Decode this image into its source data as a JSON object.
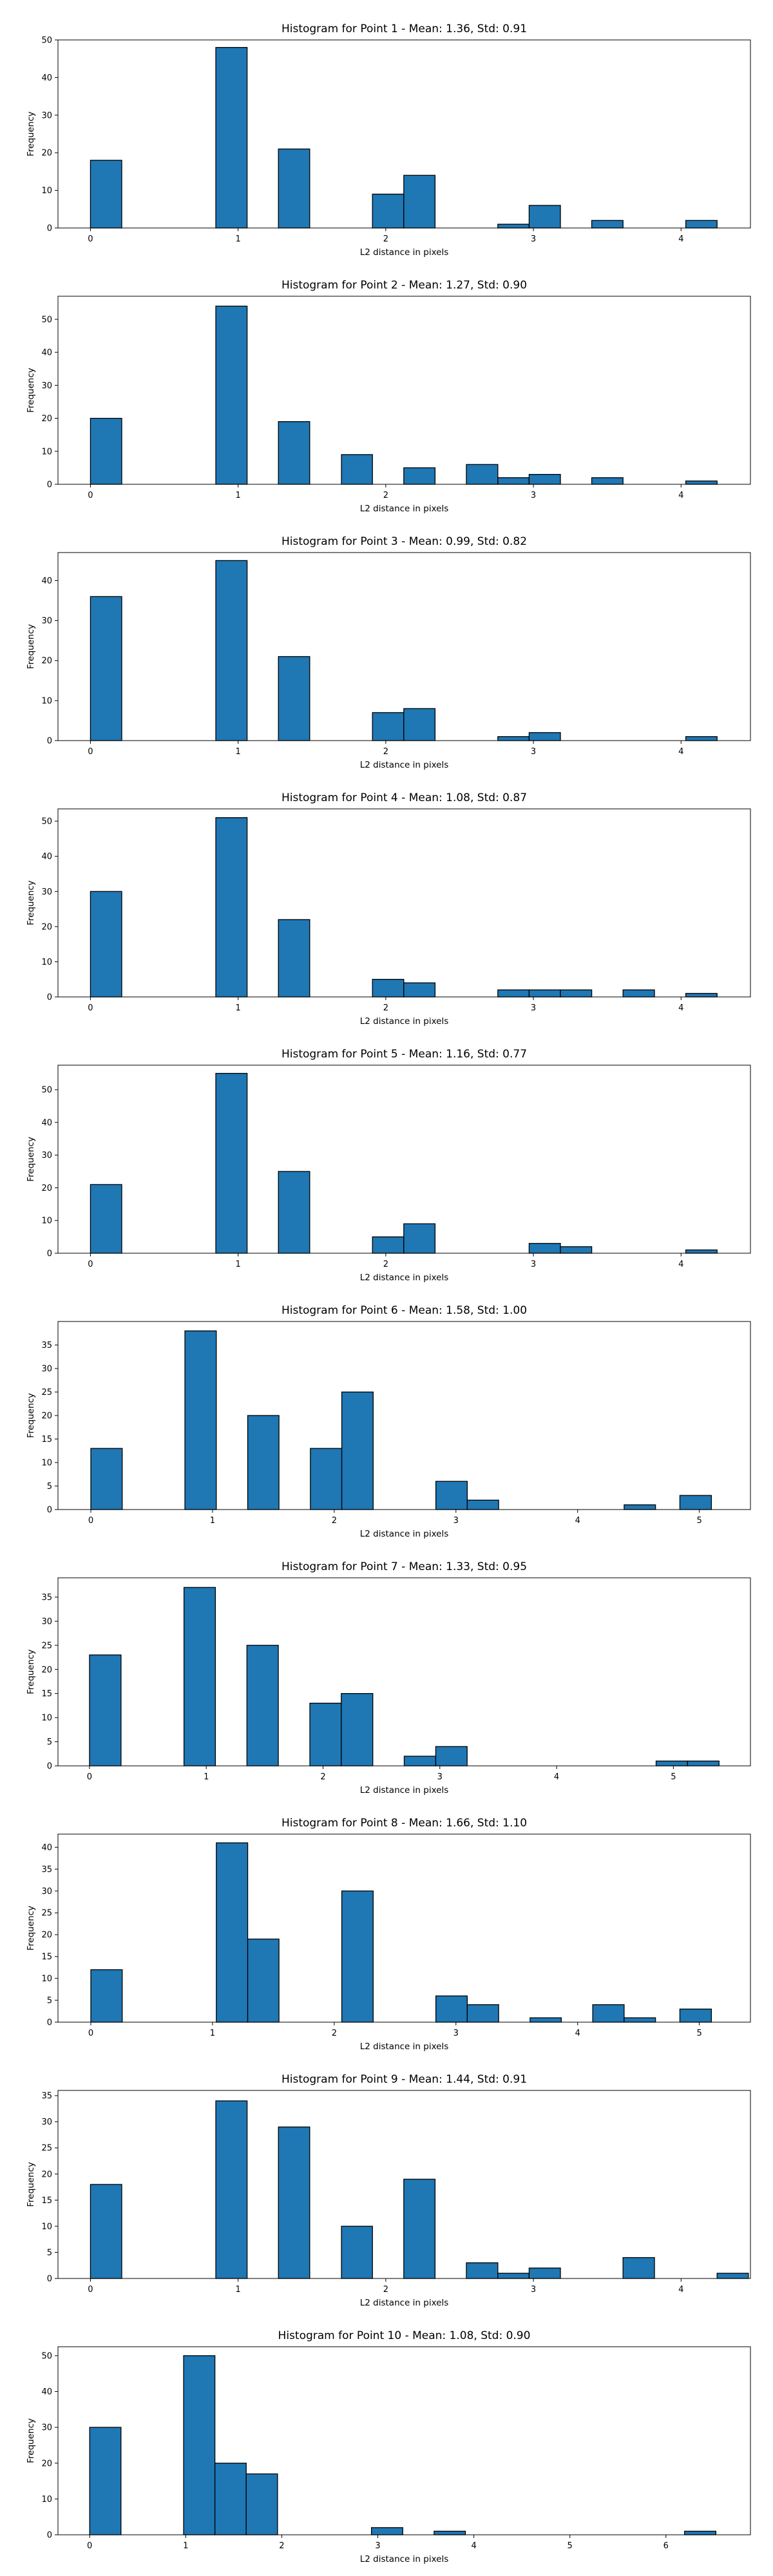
{
  "figure": {
    "bar_color": "#1f77b4",
    "edge_color": "#000000"
  },
  "chart_data": [
    {
      "type": "bar",
      "title": "Histogram for Point 1 - Mean: 1.36, Std: 0.91",
      "xlabel": "L2 distance in pixels",
      "ylabel": "Frequency",
      "xlim": [
        -0.22,
        4.47
      ],
      "ylim": [
        0,
        50
      ],
      "xticks": [
        0,
        1,
        2,
        3,
        4
      ],
      "yticks": [
        0,
        10,
        20,
        30,
        40,
        50
      ],
      "bars": [
        {
          "x0": 0.0,
          "x1": 0.212,
          "value": 18
        },
        {
          "x0": 0.849,
          "x1": 1.061,
          "value": 48
        },
        {
          "x0": 1.273,
          "x1": 1.485,
          "value": 21
        },
        {
          "x0": 1.91,
          "x1": 2.122,
          "value": 9
        },
        {
          "x0": 2.122,
          "x1": 2.334,
          "value": 14
        },
        {
          "x0": 2.759,
          "x1": 2.971,
          "value": 1
        },
        {
          "x0": 2.971,
          "x1": 3.183,
          "value": 6
        },
        {
          "x0": 3.395,
          "x1": 3.607,
          "value": 2
        },
        {
          "x0": 4.032,
          "x1": 4.244,
          "value": 2
        }
      ]
    },
    {
      "type": "bar",
      "title": "Histogram for Point 2 - Mean: 1.27, Std: 0.90",
      "xlabel": "L2 distance in pixels",
      "ylabel": "Frequency",
      "xlim": [
        -0.22,
        4.47
      ],
      "ylim": [
        0,
        57
      ],
      "xticks": [
        0,
        1,
        2,
        3,
        4
      ],
      "yticks": [
        0,
        10,
        20,
        30,
        40,
        50
      ],
      "bars": [
        {
          "x0": 0.0,
          "x1": 0.212,
          "value": 20
        },
        {
          "x0": 0.849,
          "x1": 1.061,
          "value": 54
        },
        {
          "x0": 1.273,
          "x1": 1.485,
          "value": 19
        },
        {
          "x0": 1.7,
          "x1": 1.91,
          "value": 9
        },
        {
          "x0": 2.122,
          "x1": 2.334,
          "value": 5
        },
        {
          "x0": 2.546,
          "x1": 2.759,
          "value": 6
        },
        {
          "x0": 2.759,
          "x1": 2.971,
          "value": 2
        },
        {
          "x0": 2.971,
          "x1": 3.183,
          "value": 3
        },
        {
          "x0": 3.395,
          "x1": 3.607,
          "value": 2
        },
        {
          "x0": 4.032,
          "x1": 4.244,
          "value": 1
        }
      ]
    },
    {
      "type": "bar",
      "title": "Histogram for Point 3 - Mean: 0.99, Std: 0.82",
      "xlabel": "L2 distance in pixels",
      "ylabel": "Frequency",
      "xlim": [
        -0.22,
        4.47
      ],
      "ylim": [
        0,
        47
      ],
      "xticks": [
        0,
        1,
        2,
        3,
        4
      ],
      "yticks": [
        0,
        10,
        20,
        30,
        40
      ],
      "bars": [
        {
          "x0": 0.0,
          "x1": 0.212,
          "value": 36
        },
        {
          "x0": 0.849,
          "x1": 1.061,
          "value": 45
        },
        {
          "x0": 1.273,
          "x1": 1.485,
          "value": 21
        },
        {
          "x0": 1.91,
          "x1": 2.122,
          "value": 7
        },
        {
          "x0": 2.122,
          "x1": 2.334,
          "value": 8
        },
        {
          "x0": 2.759,
          "x1": 2.971,
          "value": 1
        },
        {
          "x0": 2.971,
          "x1": 3.183,
          "value": 2
        },
        {
          "x0": 4.032,
          "x1": 4.244,
          "value": 1
        }
      ]
    },
    {
      "type": "bar",
      "title": "Histogram for Point 4 - Mean: 1.08, Std: 0.87",
      "xlabel": "L2 distance in pixels",
      "ylabel": "Frequency",
      "xlim": [
        -0.22,
        4.47
      ],
      "ylim": [
        0,
        53.5
      ],
      "xticks": [
        0,
        1,
        2,
        3,
        4
      ],
      "yticks": [
        0,
        10,
        20,
        30,
        40,
        50
      ],
      "bars": [
        {
          "x0": 0.0,
          "x1": 0.212,
          "value": 30
        },
        {
          "x0": 0.849,
          "x1": 1.061,
          "value": 51
        },
        {
          "x0": 1.273,
          "x1": 1.485,
          "value": 22
        },
        {
          "x0": 1.91,
          "x1": 2.122,
          "value": 5
        },
        {
          "x0": 2.122,
          "x1": 2.334,
          "value": 4
        },
        {
          "x0": 2.759,
          "x1": 2.971,
          "value": 2
        },
        {
          "x0": 2.971,
          "x1": 3.183,
          "value": 2
        },
        {
          "x0": 3.183,
          "x1": 3.395,
          "value": 2
        },
        {
          "x0": 3.607,
          "x1": 3.82,
          "value": 2
        },
        {
          "x0": 4.032,
          "x1": 4.244,
          "value": 1
        }
      ]
    },
    {
      "type": "bar",
      "title": "Histogram for Point 5 - Mean: 1.16, Std: 0.77",
      "xlabel": "L2 distance in pixels",
      "ylabel": "Frequency",
      "xlim": [
        -0.22,
        4.47
      ],
      "ylim": [
        0,
        57.5
      ],
      "xticks": [
        0,
        1,
        2,
        3,
        4
      ],
      "yticks": [
        0,
        10,
        20,
        30,
        40,
        50
      ],
      "bars": [
        {
          "x0": 0.0,
          "x1": 0.212,
          "value": 21
        },
        {
          "x0": 0.849,
          "x1": 1.061,
          "value": 55
        },
        {
          "x0": 1.273,
          "x1": 1.485,
          "value": 25
        },
        {
          "x0": 1.91,
          "x1": 2.122,
          "value": 5
        },
        {
          "x0": 2.122,
          "x1": 2.334,
          "value": 9
        },
        {
          "x0": 2.971,
          "x1": 3.183,
          "value": 3
        },
        {
          "x0": 3.183,
          "x1": 3.395,
          "value": 2
        },
        {
          "x0": 4.032,
          "x1": 4.244,
          "value": 1
        }
      ]
    },
    {
      "type": "bar",
      "title": "Histogram for Point 6 - Mean: 1.58, Std: 1.00",
      "xlabel": "L2 distance in pixels",
      "ylabel": "Frequency",
      "xlim": [
        -0.27,
        5.42
      ],
      "ylim": [
        0,
        40
      ],
      "xticks": [
        0,
        1,
        2,
        3,
        4,
        5
      ],
      "yticks": [
        0,
        5,
        10,
        15,
        20,
        25,
        30,
        35
      ],
      "bars": [
        {
          "x0": 0.0,
          "x1": 0.258,
          "value": 13
        },
        {
          "x0": 0.773,
          "x1": 1.031,
          "value": 38
        },
        {
          "x0": 1.289,
          "x1": 1.546,
          "value": 20
        },
        {
          "x0": 1.804,
          "x1": 2.062,
          "value": 13
        },
        {
          "x0": 2.062,
          "x1": 2.32,
          "value": 25
        },
        {
          "x0": 2.835,
          "x1": 3.093,
          "value": 6
        },
        {
          "x0": 3.093,
          "x1": 3.351,
          "value": 2
        },
        {
          "x0": 4.382,
          "x1": 4.64,
          "value": 1
        },
        {
          "x0": 4.84,
          "x1": 5.099,
          "value": 3
        }
      ]
    },
    {
      "type": "bar",
      "title": "Histogram for Point 7 - Mean: 1.33, Std: 0.95",
      "xlabel": "L2 distance in pixels",
      "ylabel": "Frequency",
      "xlim": [
        -0.27,
        5.66
      ],
      "ylim": [
        0,
        39
      ],
      "xticks": [
        0,
        1,
        2,
        3,
        4,
        5
      ],
      "yticks": [
        0,
        5,
        10,
        15,
        20,
        25,
        30,
        35
      ],
      "bars": [
        {
          "x0": 0.0,
          "x1": 0.27,
          "value": 23
        },
        {
          "x0": 0.809,
          "x1": 1.078,
          "value": 37
        },
        {
          "x0": 1.348,
          "x1": 1.617,
          "value": 25
        },
        {
          "x0": 1.887,
          "x1": 2.156,
          "value": 13
        },
        {
          "x0": 2.156,
          "x1": 2.426,
          "value": 15
        },
        {
          "x0": 2.695,
          "x1": 2.965,
          "value": 2
        },
        {
          "x0": 2.965,
          "x1": 3.234,
          "value": 4
        },
        {
          "x0": 4.852,
          "x1": 5.121,
          "value": 1
        },
        {
          "x0": 5.121,
          "x1": 5.391,
          "value": 1
        }
      ]
    },
    {
      "type": "bar",
      "title": "Histogram for Point 8 - Mean: 1.66, Std: 1.10",
      "xlabel": "L2 distance in pixels",
      "ylabel": "Frequency",
      "xlim": [
        -0.27,
        5.42
      ],
      "ylim": [
        0,
        43
      ],
      "xticks": [
        0,
        1,
        2,
        3,
        4,
        5
      ],
      "yticks": [
        0,
        5,
        10,
        15,
        20,
        25,
        30,
        35,
        40
      ],
      "bars": [
        {
          "x0": 0.0,
          "x1": 0.258,
          "value": 12
        },
        {
          "x0": 1.031,
          "x1": 1.289,
          "value": 41
        },
        {
          "x0": 1.289,
          "x1": 1.546,
          "value": 19
        },
        {
          "x0": 2.062,
          "x1": 2.32,
          "value": 30
        },
        {
          "x0": 2.835,
          "x1": 3.093,
          "value": 6
        },
        {
          "x0": 3.093,
          "x1": 3.351,
          "value": 4
        },
        {
          "x0": 3.609,
          "x1": 3.866,
          "value": 1
        },
        {
          "x0": 4.124,
          "x1": 4.382,
          "value": 4
        },
        {
          "x0": 4.382,
          "x1": 4.64,
          "value": 1
        },
        {
          "x0": 4.84,
          "x1": 5.099,
          "value": 3
        }
      ]
    },
    {
      "type": "bar",
      "title": "Histogram for Point 9 - Mean: 1.44, Std: 0.91",
      "xlabel": "L2 distance in pixels",
      "ylabel": "Frequency",
      "xlim": [
        -0.22,
        4.47
      ],
      "ylim": [
        0,
        36
      ],
      "xticks": [
        0,
        1,
        2,
        3,
        4
      ],
      "yticks": [
        0,
        5,
        10,
        15,
        20,
        25,
        30,
        35
      ],
      "bars": [
        {
          "x0": 0.0,
          "x1": 0.212,
          "value": 18
        },
        {
          "x0": 0.849,
          "x1": 1.061,
          "value": 34
        },
        {
          "x0": 1.273,
          "x1": 1.485,
          "value": 29
        },
        {
          "x0": 1.7,
          "x1": 1.91,
          "value": 10
        },
        {
          "x0": 2.122,
          "x1": 2.334,
          "value": 19
        },
        {
          "x0": 2.546,
          "x1": 2.759,
          "value": 3
        },
        {
          "x0": 2.759,
          "x1": 2.971,
          "value": 1
        },
        {
          "x0": 2.971,
          "x1": 3.183,
          "value": 2
        },
        {
          "x0": 3.607,
          "x1": 3.82,
          "value": 4
        },
        {
          "x0": 4.244,
          "x1": 4.456,
          "value": 1
        }
      ]
    },
    {
      "type": "bar",
      "title": "Histogram for Point 10 - Mean: 1.08, Std: 0.90",
      "xlabel": "L2 distance in pixels",
      "ylabel": "Frequency",
      "xlim": [
        -0.33,
        6.88
      ],
      "ylim": [
        0,
        52.5
      ],
      "xticks": [
        0,
        1,
        2,
        3,
        4,
        5,
        6
      ],
      "yticks": [
        0,
        10,
        20,
        30,
        40,
        50
      ],
      "bars": [
        {
          "x0": 0.0,
          "x1": 0.326,
          "value": 30
        },
        {
          "x0": 0.978,
          "x1": 1.304,
          "value": 50
        },
        {
          "x0": 1.304,
          "x1": 1.63,
          "value": 20
        },
        {
          "x0": 1.63,
          "x1": 1.956,
          "value": 17
        },
        {
          "x0": 2.934,
          "x1": 3.26,
          "value": 2
        },
        {
          "x0": 3.586,
          "x1": 3.912,
          "value": 1
        },
        {
          "x0": 6.194,
          "x1": 6.52,
          "value": 1
        }
      ]
    }
  ]
}
